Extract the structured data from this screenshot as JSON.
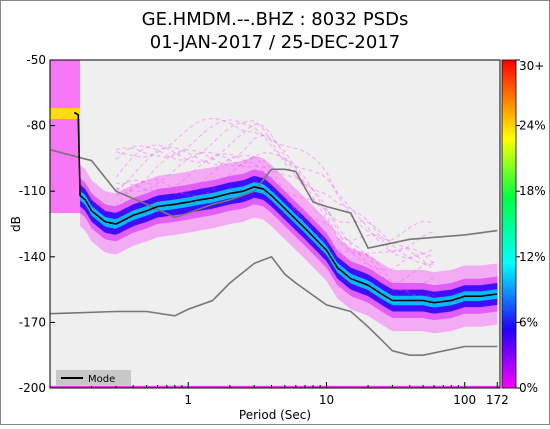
{
  "chart_data": {
    "type": "heatmap",
    "title": "GE.HMDM.--.BHZ : 8032 PSDs",
    "subtitle": "01-JAN-2017 / 25-DEC-2017",
    "xlabel": "Period (Sec)",
    "ylabel": "dB",
    "x_scale": "log",
    "xlim": [
      0.1,
      180
    ],
    "ylim": [
      -200,
      -50
    ],
    "x_ticks": [
      1,
      10,
      100,
      172
    ],
    "x_tick_labels": [
      "1",
      "10",
      "100",
      "172"
    ],
    "y_ticks": [
      -50,
      -80,
      -110,
      -140,
      -170,
      -200
    ],
    "y_tick_labels": [
      "-50",
      "-80",
      "-110",
      "-140",
      "-170",
      "-200"
    ],
    "colorbar": {
      "ticks": [
        0,
        6,
        12,
        18,
        24,
        30
      ],
      "tick_labels": [
        "0%",
        "6%",
        "12%",
        "18%",
        "24%",
        "30+"
      ],
      "colors": [
        "#ff00ff",
        "#0000ff",
        "#00ffff",
        "#00ff00",
        "#ffff00",
        "#ff0000"
      ]
    },
    "legend": {
      "entries": [
        "Mode"
      ],
      "position": "bottom-left"
    },
    "series": [
      {
        "name": "Mode",
        "color": "#000000",
        "x": [
          0.15,
          0.16,
          0.165,
          0.18,
          0.2,
          0.25,
          0.3,
          0.4,
          0.5,
          0.6,
          0.8,
          1.0,
          1.2,
          1.5,
          2.0,
          2.5,
          3.0,
          3.5,
          4.0,
          5.0,
          7.0,
          10.0,
          12.0,
          15.0,
          20.0,
          25.0,
          30.0,
          40.0,
          50.0,
          60.0,
          80.0,
          100.0,
          130.0,
          172.0
        ],
        "y": [
          -74,
          -75,
          -112,
          -114,
          -119,
          -124,
          -125,
          -121,
          -119,
          -117,
          -116,
          -115,
          -114,
          -113,
          -111,
          -110,
          -108,
          -109,
          -112,
          -118,
          -127,
          -137,
          -145,
          -150,
          -153,
          -157,
          -160,
          -160,
          -160,
          -161,
          -160,
          -158,
          -158,
          -157
        ]
      },
      {
        "color": "#777777",
        "x": [
          0.1,
          0.15,
          0.2,
          0.3,
          0.5,
          0.8,
          1.0,
          1.5,
          2.0,
          3.0,
          4.0,
          5.0,
          6.0,
          8.0,
          10.0,
          15.0,
          20.0,
          40.0,
          100.0,
          172.0
        ],
        "y": [
          -91,
          -94,
          -96,
          -110,
          -116,
          -122,
          -120,
          -116,
          -114,
          -110,
          -100,
          -100,
          -101,
          -115,
          -117,
          -120,
          -136,
          -132,
          -130,
          -128
        ]
      },
      {
        "color": "#777777",
        "x": [
          0.1,
          0.3,
          0.5,
          0.8,
          1.0,
          1.5,
          2.0,
          3.0,
          4.0,
          5.0,
          6.0,
          10.0,
          15.0,
          20.0,
          25.0,
          30.0,
          40.0,
          50.0,
          100.0,
          172.0
        ],
        "y": [
          -166,
          -165,
          -165,
          -167,
          -164,
          -160,
          -152,
          -143,
          -140,
          -148,
          -152,
          -162,
          -165,
          -172,
          -178,
          -183,
          -185,
          -185,
          -181,
          -181
        ]
      }
    ]
  }
}
